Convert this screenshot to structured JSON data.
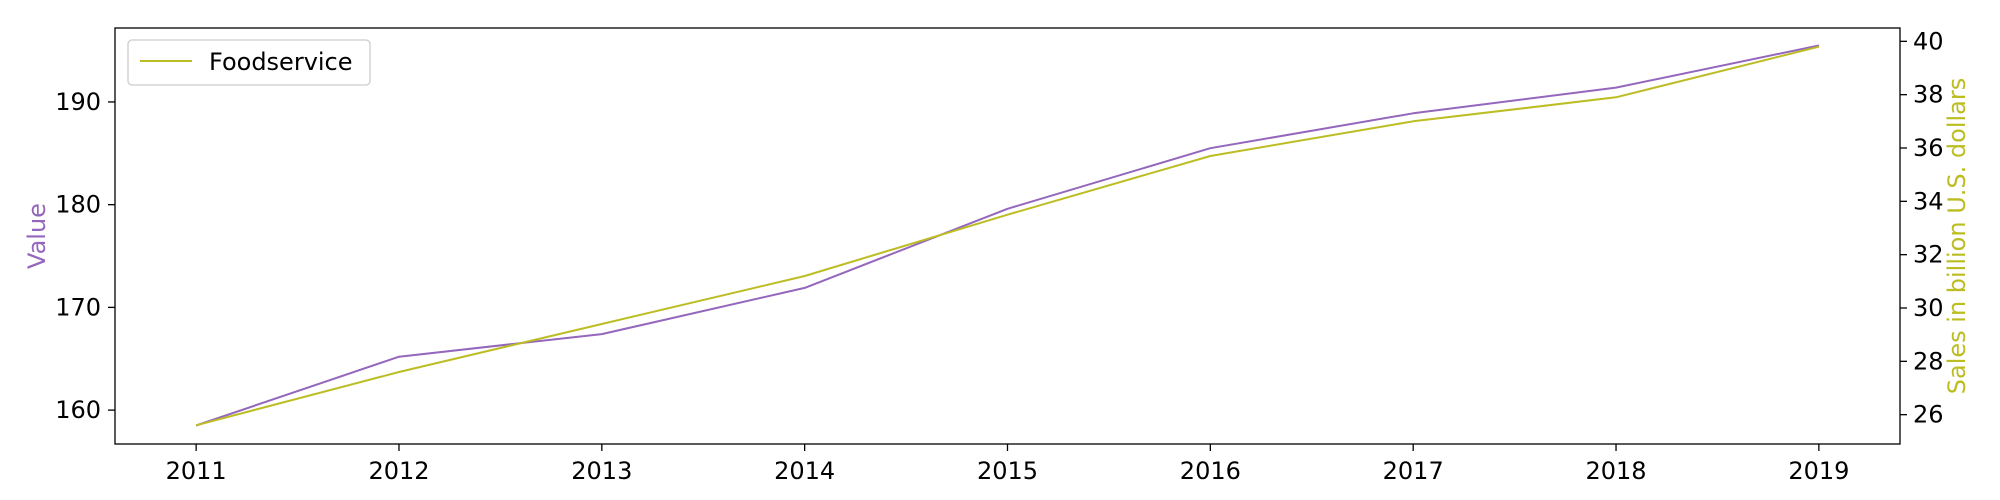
{
  "chart_data": {
    "type": "line",
    "title": "",
    "x": [
      2011,
      2012,
      2013,
      2014,
      2015,
      2016,
      2017,
      2018,
      2019
    ],
    "xlabel": "",
    "series": [
      {
        "name": "",
        "axis": "left",
        "color": "#9467bd",
        "values": [
          158.5,
          165.2,
          167.4,
          171.9,
          179.6,
          185.5,
          188.9,
          191.4,
          195.5
        ]
      },
      {
        "name": "Foodservice",
        "axis": "right",
        "color": "#bcbd22",
        "values": [
          25.6,
          27.6,
          29.4,
          31.2,
          33.5,
          35.7,
          37.0,
          37.9,
          39.8
        ]
      }
    ],
    "y_left": {
      "label": "Value",
      "color": "#9467bd",
      "lim": [
        156.7,
        197.2
      ],
      "ticks": [
        160,
        170,
        180,
        190
      ]
    },
    "y_right": {
      "label": "Sales in billion U.S. dollars",
      "color": "#bcbd22",
      "lim": [
        24.9,
        40.5
      ],
      "ticks": [
        26,
        28,
        30,
        32,
        34,
        36,
        38,
        40
      ]
    },
    "xlim": [
      2010.6,
      2019.4
    ],
    "grid": false,
    "legend_position": "top-left"
  }
}
